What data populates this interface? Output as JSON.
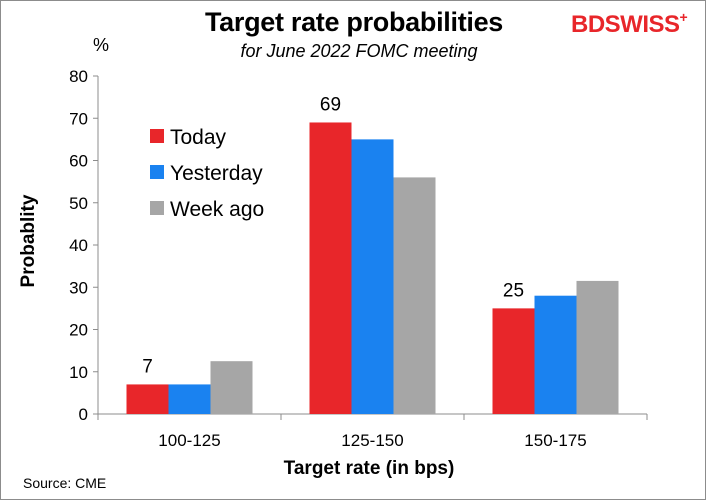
{
  "header": {
    "title": "Target rate probabilities",
    "subtitle": "for June 2022 FOMC meeting",
    "brand": "BDSWISS",
    "brand_mark": "+",
    "unit": "%"
  },
  "footer": {
    "source": "Source: CME"
  },
  "colors": {
    "today": "#e8262a",
    "yesterday": "#1a82f0",
    "week_ago": "#a6a6a6",
    "brand": "#e8262a"
  },
  "chart_data": {
    "type": "bar",
    "title": "Target rate probabilities",
    "subtitle": "for June 2022 FOMC meeting",
    "xlabel": "Target rate (in bps)",
    "ylabel": "Probablity",
    "categories": [
      "100-125",
      "125-150",
      "150-175"
    ],
    "series": [
      {
        "name": "Today",
        "color": "#e8262a",
        "values": [
          7,
          69,
          25
        ],
        "data_labels": [
          "7",
          "69",
          "25"
        ]
      },
      {
        "name": "Yesterday",
        "color": "#1a82f0",
        "values": [
          7,
          65,
          28
        ],
        "data_labels": [
          "",
          "",
          ""
        ]
      },
      {
        "name": "Week ago",
        "color": "#a6a6a6",
        "values": [
          12.5,
          56,
          31.5
        ],
        "data_labels": [
          "",
          "",
          ""
        ]
      }
    ],
    "ylim": [
      0,
      80
    ],
    "yticks": [
      "0",
      "10",
      "20",
      "30",
      "40",
      "50",
      "60",
      "70",
      "80"
    ],
    "grid": false,
    "legend_position": "top-left"
  }
}
